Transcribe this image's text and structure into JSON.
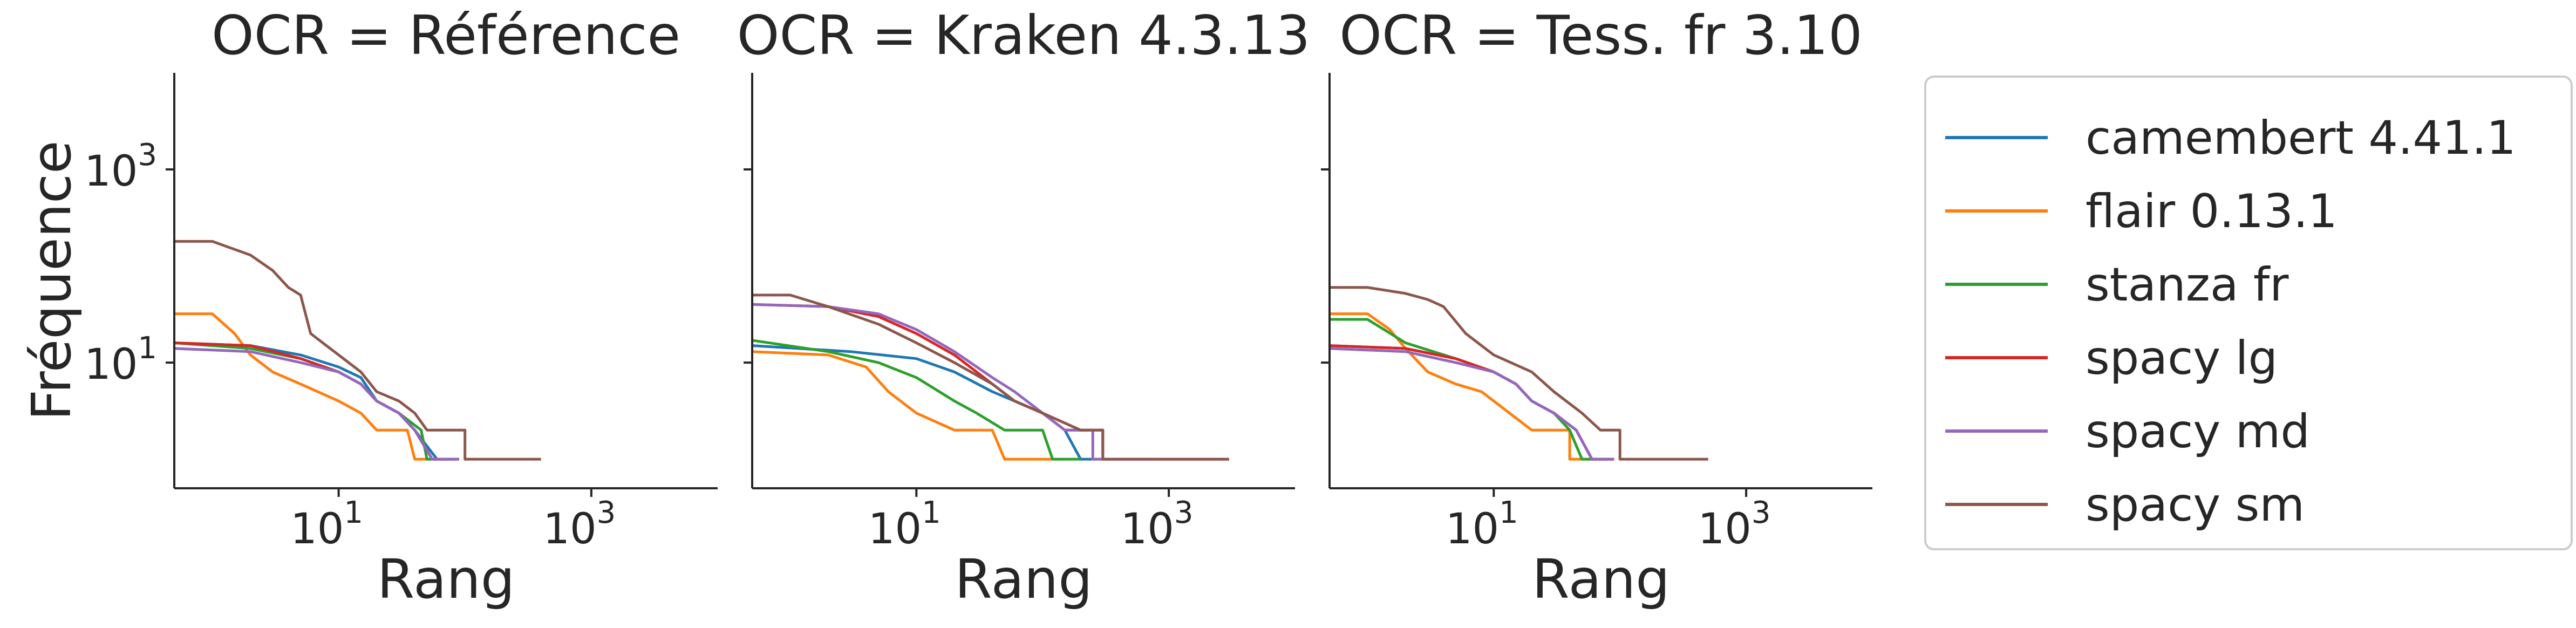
{
  "chart_data": [
    {
      "type": "line",
      "title": "OCR = Référence",
      "xlabel": "Rang",
      "ylabel": "Fréquence",
      "xscale": "log",
      "yscale": "log",
      "xlim": [
        0.5,
        10000
      ],
      "ylim": [
        0.5,
        10000
      ],
      "xticks": [
        {
          "base": "10",
          "exp": "1",
          "value": 10
        },
        {
          "base": "10",
          "exp": "3",
          "value": 1000
        }
      ],
      "yticks": [
        {
          "base": "10",
          "exp": "1",
          "value": 10
        },
        {
          "base": "10",
          "exp": "3",
          "value": 1000
        }
      ],
      "series": [
        {
          "name": "camembert 4.41.1",
          "color": "#1f77b4",
          "points": [
            [
              0.5,
              16
            ],
            [
              2,
              15
            ],
            [
              5,
              12
            ],
            [
              10,
              9
            ],
            [
              15,
              7
            ],
            [
              20,
              4
            ],
            [
              30,
              3
            ],
            [
              40,
              2
            ],
            [
              60,
              1
            ],
            [
              80,
              1
            ]
          ]
        },
        {
          "name": "flair 0.13.1",
          "color": "#ff7f0e",
          "points": [
            [
              0.5,
              32
            ],
            [
              1,
              32
            ],
            [
              1.5,
              20
            ],
            [
              2,
              12
            ],
            [
              3,
              8
            ],
            [
              5,
              6
            ],
            [
              10,
              4
            ],
            [
              15,
              3
            ],
            [
              20,
              2
            ],
            [
              35,
              2
            ],
            [
              40,
              1
            ],
            [
              70,
              1
            ]
          ]
        },
        {
          "name": "stanza fr",
          "color": "#2ca02c",
          "points": [
            [
              0.5,
              16
            ],
            [
              2,
              14
            ],
            [
              5,
              11
            ],
            [
              10,
              8
            ],
            [
              15,
              6
            ],
            [
              20,
              4
            ],
            [
              30,
              3
            ],
            [
              45,
              2
            ],
            [
              50,
              1
            ],
            [
              80,
              1
            ]
          ]
        },
        {
          "name": "spacy lg",
          "color": "#d62728",
          "points": [
            [
              0.5,
              16
            ],
            [
              2,
              15
            ],
            [
              5,
              11
            ],
            [
              10,
              8
            ],
            [
              15,
              6
            ],
            [
              20,
              4
            ],
            [
              30,
              3
            ],
            [
              40,
              2
            ],
            [
              55,
              1
            ],
            [
              90,
              1
            ]
          ]
        },
        {
          "name": "spacy md",
          "color": "#9467bd",
          "points": [
            [
              0.5,
              14
            ],
            [
              2,
              13
            ],
            [
              5,
              10
            ],
            [
              10,
              8
            ],
            [
              15,
              6
            ],
            [
              20,
              4
            ],
            [
              30,
              3
            ],
            [
              40,
              2
            ],
            [
              55,
              1
            ],
            [
              90,
              1
            ]
          ]
        },
        {
          "name": "spacy sm",
          "color": "#8c564b",
          "points": [
            [
              0.5,
              180
            ],
            [
              1,
              180
            ],
            [
              2,
              130
            ],
            [
              3,
              90
            ],
            [
              4,
              60
            ],
            [
              5,
              50
            ],
            [
              6,
              20
            ],
            [
              8,
              15
            ],
            [
              10,
              12
            ],
            [
              15,
              8
            ],
            [
              20,
              5
            ],
            [
              30,
              4
            ],
            [
              40,
              3
            ],
            [
              50,
              2
            ],
            [
              100,
              2
            ],
            [
              100,
              1
            ],
            [
              400,
              1
            ]
          ]
        }
      ]
    },
    {
      "type": "line",
      "title": "OCR = Kraken 4.3.13",
      "xlabel": "Rang",
      "ylabel": "",
      "xscale": "log",
      "yscale": "log",
      "xlim": [
        0.5,
        10000
      ],
      "ylim": [
        0.5,
        10000
      ],
      "xticks": [
        {
          "base": "10",
          "exp": "1",
          "value": 10
        },
        {
          "base": "10",
          "exp": "3",
          "value": 1000
        }
      ],
      "yticks": [],
      "series": [
        {
          "name": "camembert 4.41.1",
          "color": "#1f77b4",
          "points": [
            [
              0.5,
              15
            ],
            [
              3,
              13
            ],
            [
              10,
              11
            ],
            [
              20,
              8
            ],
            [
              40,
              5
            ],
            [
              60,
              4
            ],
            [
              100,
              3
            ],
            [
              150,
              2
            ],
            [
              200,
              1
            ],
            [
              300,
              1
            ]
          ]
        },
        {
          "name": "flair 0.13.1",
          "color": "#ff7f0e",
          "points": [
            [
              0.5,
              13
            ],
            [
              2,
              12
            ],
            [
              4,
              9
            ],
            [
              6,
              5
            ],
            [
              10,
              3
            ],
            [
              20,
              2
            ],
            [
              40,
              2
            ],
            [
              50,
              1
            ],
            [
              150,
              1
            ]
          ]
        },
        {
          "name": "stanza fr",
          "color": "#2ca02c",
          "points": [
            [
              0.5,
              17
            ],
            [
              2,
              13
            ],
            [
              5,
              10
            ],
            [
              10,
              7
            ],
            [
              20,
              4
            ],
            [
              30,
              3
            ],
            [
              50,
              2
            ],
            [
              100,
              2
            ],
            [
              120,
              1
            ],
            [
              200,
              1
            ]
          ]
        },
        {
          "name": "spacy lg",
          "color": "#d62728",
          "points": [
            [
              0.5,
              40
            ],
            [
              2,
              38
            ],
            [
              5,
              30
            ],
            [
              10,
              20
            ],
            [
              20,
              12
            ],
            [
              40,
              6
            ],
            [
              60,
              4
            ],
            [
              100,
              3
            ],
            [
              150,
              2
            ],
            [
              300,
              2
            ],
            [
              300,
              1
            ],
            [
              3000,
              1
            ]
          ]
        },
        {
          "name": "spacy md",
          "color": "#9467bd",
          "points": [
            [
              0.5,
              40
            ],
            [
              2,
              38
            ],
            [
              5,
              32
            ],
            [
              10,
              22
            ],
            [
              20,
              13
            ],
            [
              40,
              7
            ],
            [
              60,
              5
            ],
            [
              100,
              3
            ],
            [
              150,
              2
            ],
            [
              250,
              2
            ],
            [
              250,
              1
            ],
            [
              800,
              1
            ]
          ]
        },
        {
          "name": "spacy sm",
          "color": "#8c564b",
          "points": [
            [
              0.5,
              50
            ],
            [
              1,
              50
            ],
            [
              2,
              38
            ],
            [
              5,
              25
            ],
            [
              10,
              16
            ],
            [
              20,
              10
            ],
            [
              40,
              6
            ],
            [
              60,
              4
            ],
            [
              100,
              3
            ],
            [
              200,
              2
            ],
            [
              300,
              2
            ],
            [
              300,
              1
            ],
            [
              3000,
              1
            ]
          ]
        }
      ]
    },
    {
      "type": "line",
      "title": "OCR = Tess. fr 3.10",
      "xlabel": "Rang",
      "ylabel": "",
      "xscale": "log",
      "yscale": "log",
      "xlim": [
        0.5,
        10000
      ],
      "ylim": [
        0.5,
        10000
      ],
      "xticks": [
        {
          "base": "10",
          "exp": "1",
          "value": 10
        },
        {
          "base": "10",
          "exp": "3",
          "value": 1000
        }
      ],
      "yticks": [],
      "series": [
        {
          "name": "camembert 4.41.1",
          "color": "#1f77b4",
          "points": [
            [
              0.5,
              15
            ],
            [
              2,
              14
            ],
            [
              5,
              11
            ],
            [
              10,
              8
            ],
            [
              15,
              6
            ],
            [
              20,
              4
            ],
            [
              30,
              3
            ],
            [
              45,
              2
            ],
            [
              60,
              1
            ],
            [
              90,
              1
            ]
          ]
        },
        {
          "name": "flair 0.13.1",
          "color": "#ff7f0e",
          "points": [
            [
              0.5,
              32
            ],
            [
              1,
              32
            ],
            [
              1.5,
              22
            ],
            [
              2,
              14
            ],
            [
              3,
              8
            ],
            [
              5,
              6
            ],
            [
              8,
              5
            ],
            [
              10,
              4
            ],
            [
              20,
              2
            ],
            [
              40,
              2
            ],
            [
              40,
              1
            ],
            [
              70,
              1
            ]
          ]
        },
        {
          "name": "stanza fr",
          "color": "#2ca02c",
          "points": [
            [
              0.5,
              28
            ],
            [
              1,
              28
            ],
            [
              2,
              16
            ],
            [
              5,
              11
            ],
            [
              10,
              8
            ],
            [
              15,
              6
            ],
            [
              20,
              4
            ],
            [
              30,
              3
            ],
            [
              40,
              2
            ],
            [
              50,
              1
            ],
            [
              80,
              1
            ]
          ]
        },
        {
          "name": "spacy lg",
          "color": "#d62728",
          "points": [
            [
              0.5,
              15
            ],
            [
              2,
              14
            ],
            [
              5,
              11
            ],
            [
              10,
              8
            ],
            [
              15,
              6
            ],
            [
              20,
              4
            ],
            [
              30,
              3
            ],
            [
              45,
              2
            ],
            [
              60,
              1
            ],
            [
              90,
              1
            ]
          ]
        },
        {
          "name": "spacy md",
          "color": "#9467bd",
          "points": [
            [
              0.5,
              14
            ],
            [
              2,
              13
            ],
            [
              5,
              10
            ],
            [
              10,
              8
            ],
            [
              15,
              6
            ],
            [
              20,
              4
            ],
            [
              30,
              3
            ],
            [
              45,
              2
            ],
            [
              60,
              1
            ],
            [
              90,
              1
            ]
          ]
        },
        {
          "name": "spacy sm",
          "color": "#8c564b",
          "points": [
            [
              0.5,
              60
            ],
            [
              1,
              60
            ],
            [
              2,
              52
            ],
            [
              3,
              45
            ],
            [
              4,
              38
            ],
            [
              6,
              20
            ],
            [
              8,
              15
            ],
            [
              10,
              12
            ],
            [
              20,
              8
            ],
            [
              30,
              5
            ],
            [
              50,
              3
            ],
            [
              70,
              2
            ],
            [
              100,
              2
            ],
            [
              100,
              1
            ],
            [
              500,
              1
            ]
          ]
        }
      ]
    }
  ],
  "legend": {
    "placement": "right",
    "entries": [
      {
        "label": "camembert 4.41.1",
        "color": "#1f77b4"
      },
      {
        "label": "flair 0.13.1",
        "color": "#ff7f0e"
      },
      {
        "label": "stanza fr",
        "color": "#2ca02c"
      },
      {
        "label": "spacy lg",
        "color": "#d62728"
      },
      {
        "label": "spacy md",
        "color": "#9467bd"
      },
      {
        "label": "spacy sm",
        "color": "#8c564b"
      }
    ]
  }
}
